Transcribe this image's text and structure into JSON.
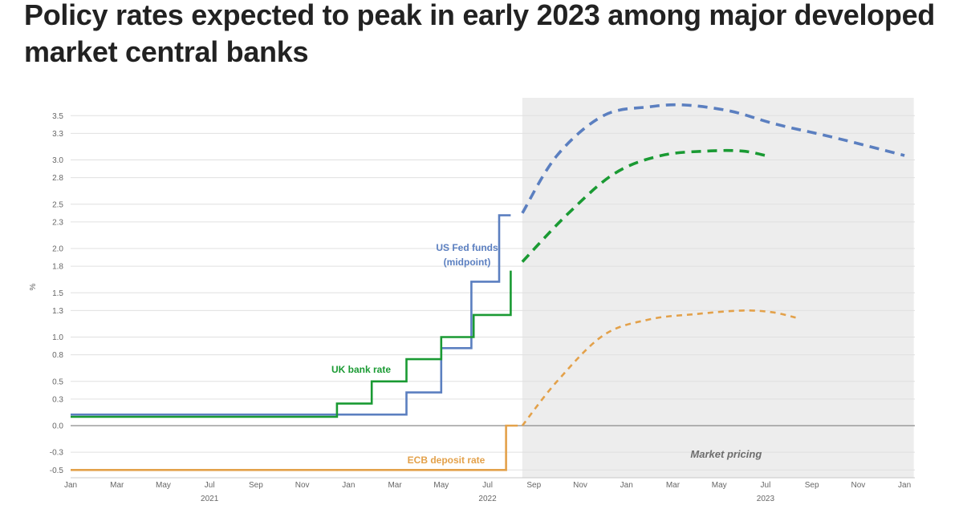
{
  "title": "Policy rates expected to peak in early 2023 among major developed market central banks",
  "chart_data": {
    "type": "line",
    "ylabel": "%",
    "ylim": [
      -0.55,
      3.65
    ],
    "y_ticks": [
      -0.5,
      -0.3,
      0.0,
      0.3,
      0.5,
      0.8,
      1.0,
      1.3,
      1.5,
      1.8,
      2.0,
      2.3,
      2.5,
      2.8,
      3.0,
      3.3,
      3.5
    ],
    "y_tick_labels": [
      "-0.5",
      "-0.3",
      "0.0",
      "0.3",
      "0.5",
      "0.8",
      "1.0",
      "1.3",
      "1.5",
      "1.8",
      "2.0",
      "2.3",
      "2.5",
      "2.8",
      "3.0",
      "3.3",
      "3.5"
    ],
    "x_ticks": [
      {
        "m": 0,
        "label": "Jan"
      },
      {
        "m": 2,
        "label": "Mar"
      },
      {
        "m": 4,
        "label": "May"
      },
      {
        "m": 6,
        "label": "Jul"
      },
      {
        "m": 8,
        "label": "Sep"
      },
      {
        "m": 10,
        "label": "Nov"
      },
      {
        "m": 12,
        "label": "Jan"
      },
      {
        "m": 14,
        "label": "Mar"
      },
      {
        "m": 16,
        "label": "May"
      },
      {
        "m": 18,
        "label": "Jul"
      },
      {
        "m": 20,
        "label": "Sep"
      },
      {
        "m": 22,
        "label": "Nov"
      },
      {
        "m": 24,
        "label": "Jan"
      },
      {
        "m": 26,
        "label": "Mar"
      },
      {
        "m": 28,
        "label": "May"
      },
      {
        "m": 30,
        "label": "Jul"
      },
      {
        "m": 32,
        "label": "Sep"
      },
      {
        "m": 34,
        "label": "Nov"
      },
      {
        "m": 36,
        "label": "Jan"
      }
    ],
    "year_labels": [
      {
        "m": 6,
        "label": "2021"
      },
      {
        "m": 18,
        "label": "2022"
      },
      {
        "m": 30,
        "label": "2023"
      }
    ],
    "x_range": [
      0,
      36.1
    ],
    "x_unit": "months from Jan 2021",
    "market_pricing": {
      "start": 19.5,
      "end": 36.4,
      "label": "Market pricing"
    },
    "series": [
      {
        "name": "US Fed funds (midpoint)",
        "label_lines": [
          "US Fed funds",
          "(midpoint)"
        ],
        "color": "#5b7fc0",
        "actual": [
          [
            0,
            0.125
          ],
          [
            11.5,
            0.125
          ],
          [
            14.5,
            0.125
          ],
          [
            14.5,
            0.375
          ],
          [
            16.0,
            0.375
          ],
          [
            16.0,
            0.875
          ],
          [
            17.3,
            0.875
          ],
          [
            17.3,
            1.625
          ],
          [
            18.5,
            1.625
          ],
          [
            18.5,
            2.375
          ],
          [
            19.0,
            2.375
          ]
        ],
        "projected": [
          [
            19.5,
            2.4
          ],
          [
            21.0,
            3.05
          ],
          [
            23.0,
            3.5
          ],
          [
            25.0,
            3.6
          ],
          [
            26.5,
            3.62
          ],
          [
            28.5,
            3.55
          ],
          [
            30.5,
            3.4
          ],
          [
            33.0,
            3.25
          ],
          [
            36.0,
            3.05
          ]
        ]
      },
      {
        "name": "UK bank rate",
        "label_lines": [
          "UK bank rate"
        ],
        "color": "#1a9a33",
        "actual": [
          [
            0,
            0.1
          ],
          [
            11.5,
            0.1
          ],
          [
            11.5,
            0.25
          ],
          [
            13.0,
            0.25
          ],
          [
            13.0,
            0.5
          ],
          [
            14.5,
            0.5
          ],
          [
            14.5,
            0.75
          ],
          [
            16.0,
            0.75
          ],
          [
            16.0,
            1.0
          ],
          [
            17.4,
            1.0
          ],
          [
            17.4,
            1.25
          ],
          [
            19.0,
            1.25
          ],
          [
            19.0,
            1.75
          ]
        ],
        "projected": [
          [
            19.5,
            1.85
          ],
          [
            21.5,
            2.4
          ],
          [
            23.5,
            2.85
          ],
          [
            25.5,
            3.05
          ],
          [
            27.5,
            3.1
          ],
          [
            29.0,
            3.1
          ],
          [
            30.0,
            3.05
          ]
        ]
      },
      {
        "name": "ECB deposit rate",
        "label_lines": [
          "ECB deposit rate"
        ],
        "color": "#e3a14a",
        "actual": [
          [
            0,
            -0.5
          ],
          [
            18.8,
            -0.5
          ],
          [
            18.8,
            0.0
          ],
          [
            19.3,
            0.0
          ]
        ],
        "projected": [
          [
            19.5,
            0.0
          ],
          [
            21.0,
            0.5
          ],
          [
            23.0,
            1.02
          ],
          [
            25.0,
            1.2
          ],
          [
            27.0,
            1.26
          ],
          [
            29.0,
            1.3
          ],
          [
            30.3,
            1.28
          ],
          [
            31.3,
            1.22
          ]
        ]
      }
    ]
  }
}
